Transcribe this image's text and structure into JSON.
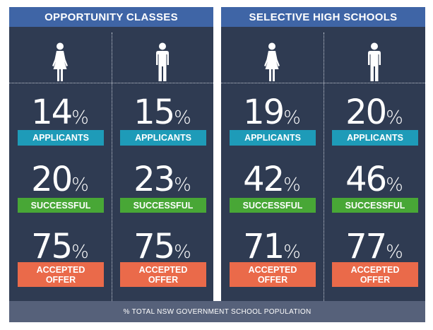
{
  "colors": {
    "panel_bg": "#2f3b52",
    "header_bg": "#3f65a6",
    "applicants": "#1e9bb8",
    "successful": "#48a736",
    "accepted": "#ea6a4a",
    "footer_bg": "#56617a"
  },
  "panels": [
    {
      "title": "OPPORTUNITY CLASSES",
      "columns": [
        {
          "icon": "female-icon",
          "applicants": "14",
          "successful": "20",
          "accepted": "75"
        },
        {
          "icon": "male-icon",
          "applicants": "15",
          "successful": "23",
          "accepted": "75"
        }
      ]
    },
    {
      "title": "SELECTIVE HIGH SCHOOLS",
      "columns": [
        {
          "icon": "female-icon",
          "applicants": "19",
          "successful": "42",
          "accepted": "71"
        },
        {
          "icon": "male-icon",
          "applicants": "20",
          "successful": "46",
          "accepted": "77"
        }
      ]
    }
  ],
  "labels": {
    "percent_sign": "%",
    "applicants": "APPLICANTS",
    "successful": "SUCCESSFUL",
    "accepted_line1": "ACCEPTED",
    "accepted_line2": "OFFER"
  },
  "footer": "% TOTAL NSW GOVERNMENT SCHOOL POPULATION"
}
